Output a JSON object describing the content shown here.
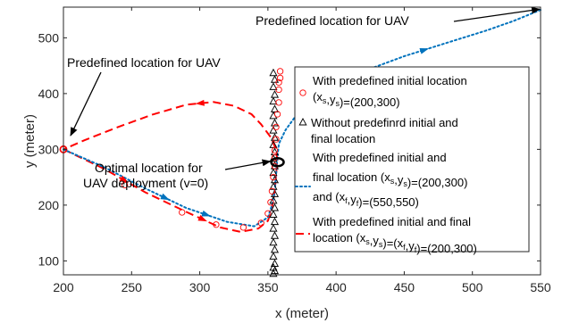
{
  "chart_data": {
    "type": "line",
    "xlabel": "x (meter)",
    "ylabel": "y (meter)",
    "xlim": [
      200,
      550
    ],
    "ylim": [
      75,
      555
    ],
    "xticks": [
      200,
      250,
      300,
      350,
      400,
      450,
      500,
      550
    ],
    "yticks": [
      100,
      200,
      300,
      400,
      500
    ],
    "grid": false,
    "legend_position": "right",
    "annotations": [
      {
        "text": "Predefined location for UAV",
        "point": [
          550,
          553
        ]
      },
      {
        "text": "Predefined location for UAV",
        "point": [
          200,
          300
        ]
      },
      {
        "lines": [
          "Optimal location for",
          "UAV deployment (v=0)"
        ],
        "point": [
          357,
          277
        ]
      }
    ],
    "series": [
      {
        "key": "s1",
        "color": "#ff0000",
        "marker": "circle",
        "line": "none",
        "legend": [
          [
            {
              "t": "With predefined initial location"
            }
          ],
          [
            {
              "t": "(x"
            },
            {
              "t": "s",
              "sub": true
            },
            {
              "t": ",y"
            },
            {
              "t": "s",
              "sub": true
            },
            {
              "t": ")=(200,300)"
            }
          ]
        ],
        "points": [
          [
            200,
            300
          ],
          [
            245,
            236
          ],
          [
            287,
            187
          ],
          [
            312,
            165
          ],
          [
            332,
            160
          ],
          [
            345,
            168
          ],
          [
            350,
            185
          ],
          [
            352,
            205
          ],
          [
            353,
            225
          ],
          [
            354,
            250
          ],
          [
            355,
            270
          ],
          [
            355,
            285
          ],
          [
            355,
            298
          ],
          [
            356,
            318
          ],
          [
            356,
            340
          ],
          [
            357,
            363
          ],
          [
            358,
            384
          ],
          [
            358,
            407
          ],
          [
            358,
            420
          ],
          [
            359,
            428
          ],
          [
            359,
            440
          ]
        ]
      },
      {
        "key": "s2",
        "color": "#000000",
        "marker": "triangle",
        "line": "none",
        "legend": [
          [
            {
              "t": "Without predefinrd initial and"
            }
          ],
          [
            {
              "t": "final location"
            }
          ]
        ],
        "points": [
          [
            354,
            437
          ],
          [
            355,
            425
          ],
          [
            354,
            412
          ],
          [
            355,
            398
          ],
          [
            354,
            386
          ],
          [
            355,
            372
          ],
          [
            354,
            360
          ],
          [
            355,
            347
          ],
          [
            354,
            334
          ],
          [
            355,
            321
          ],
          [
            354,
            308
          ],
          [
            355,
            295
          ],
          [
            354,
            283
          ],
          [
            355,
            270
          ],
          [
            354,
            258
          ],
          [
            355,
            245
          ],
          [
            354,
            233
          ],
          [
            355,
            220
          ],
          [
            354,
            208
          ],
          [
            355,
            195
          ],
          [
            354,
            183
          ],
          [
            355,
            170
          ],
          [
            354,
            158
          ],
          [
            355,
            145
          ],
          [
            354,
            133
          ],
          [
            355,
            120
          ],
          [
            354,
            108
          ],
          [
            355,
            95
          ],
          [
            354,
            88
          ],
          [
            355,
            82
          ],
          [
            354,
            77
          ]
        ]
      },
      {
        "key": "s3",
        "color": "#0072bd",
        "marker": "none",
        "line": "dotted",
        "legend": [
          [
            {
              "t": "With predefined initial and"
            }
          ],
          [
            {
              "t": "final location (x"
            },
            {
              "t": "s",
              "sub": true
            },
            {
              "t": ",y"
            },
            {
              "t": "s",
              "sub": true
            },
            {
              "t": ")=(200,300)"
            }
          ],
          [
            {
              "t": "and  (x"
            },
            {
              "t": "f",
              "sub": true
            },
            {
              "t": ",y"
            },
            {
              "t": "f",
              "sub": true
            },
            {
              "t": ")=(550,550)"
            }
          ]
        ],
        "points": [
          [
            200,
            300
          ],
          [
            230,
            268
          ],
          [
            260,
            230
          ],
          [
            290,
            195
          ],
          [
            320,
            170
          ],
          [
            340,
            162
          ],
          [
            350,
            178
          ],
          [
            353,
            200
          ],
          [
            355,
            225
          ],
          [
            356,
            255
          ],
          [
            357,
            285
          ],
          [
            358,
            310
          ],
          [
            363,
            335
          ],
          [
            375,
            375
          ],
          [
            395,
            410
          ],
          [
            420,
            440
          ],
          [
            450,
            467
          ],
          [
            480,
            490
          ],
          [
            510,
            513
          ],
          [
            530,
            530
          ],
          [
            550,
            550
          ]
        ]
      },
      {
        "key": "s4",
        "color": "#ff0000",
        "marker": "none",
        "line": "dashed",
        "legend": [
          [
            {
              "t": "With predefined initial and final"
            }
          ],
          [
            {
              "t": "location (x"
            },
            {
              "t": "s",
              "sub": true
            },
            {
              "t": ",y"
            },
            {
              "t": "s",
              "sub": true
            },
            {
              "t": ")=(x"
            },
            {
              "t": "f",
              "sub": true
            },
            {
              "t": ",y"
            },
            {
              "t": "f",
              "sub": true
            },
            {
              "t": ")=(200,300)"
            }
          ]
        ],
        "points": [
          [
            200,
            300
          ],
          [
            230,
            265
          ],
          [
            260,
            223
          ],
          [
            290,
            188
          ],
          [
            315,
            160
          ],
          [
            330,
            152
          ],
          [
            343,
            158
          ],
          [
            350,
            172
          ],
          [
            353,
            195
          ],
          [
            355,
            225
          ],
          [
            356,
            255
          ],
          [
            357,
            280
          ],
          [
            356,
            300
          ],
          [
            352,
            322
          ],
          [
            345,
            345
          ],
          [
            338,
            363
          ],
          [
            325,
            378
          ],
          [
            310,
            385
          ],
          [
            290,
            380
          ],
          [
            265,
            362
          ],
          [
            240,
            340
          ],
          [
            215,
            316
          ],
          [
            200,
            300
          ]
        ]
      }
    ]
  }
}
